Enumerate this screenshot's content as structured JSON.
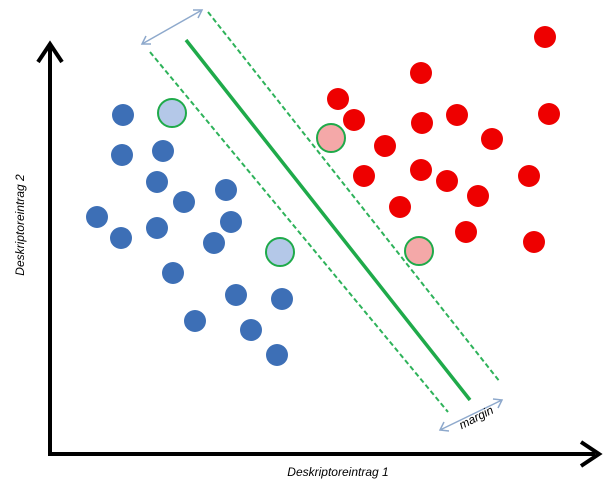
{
  "labels": {
    "x_axis": "Deskriptoreintrag 1",
    "y_axis": "Deskriptoreintrag 2",
    "margin": "margin"
  },
  "colors": {
    "class_a": "#3d6fb6",
    "class_a_support": "#b4c8e8",
    "class_b": "#ee0000",
    "class_b_support": "#f4a8a8",
    "hyperplane": "#1faa4a",
    "margin_lines": "#2eb25a",
    "margin_arrow": "#8ea9cc",
    "axes": "#000000"
  },
  "chart_data": {
    "type": "scatter",
    "series": [
      {
        "class": "a",
        "role": "points",
        "points": [
          [
            123,
            115
          ],
          [
            122,
            155
          ],
          [
            163,
            151
          ],
          [
            157,
            182
          ],
          [
            184,
            202
          ],
          [
            226,
            190
          ],
          [
            97,
            217
          ],
          [
            121,
            238
          ],
          [
            157,
            228
          ],
          [
            214,
            243
          ],
          [
            231,
            222
          ],
          [
            173,
            273
          ],
          [
            236,
            295
          ],
          [
            282,
            299
          ],
          [
            195,
            321
          ],
          [
            251,
            330
          ],
          [
            277,
            355
          ]
        ]
      },
      {
        "class": "a",
        "role": "support-vectors",
        "points": [
          [
            172,
            113
          ],
          [
            280,
            252
          ]
        ]
      },
      {
        "class": "b",
        "role": "points",
        "points": [
          [
            545,
            37
          ],
          [
            421,
            73
          ],
          [
            338,
            99
          ],
          [
            354,
            120
          ],
          [
            422,
            123
          ],
          [
            457,
            115
          ],
          [
            549,
            114
          ],
          [
            385,
            146
          ],
          [
            492,
            139
          ],
          [
            364,
            176
          ],
          [
            421,
            170
          ],
          [
            447,
            181
          ],
          [
            529,
            176
          ],
          [
            400,
            207
          ],
          [
            478,
            196
          ],
          [
            466,
            232
          ],
          [
            534,
            242
          ]
        ]
      },
      {
        "class": "b",
        "role": "support-vectors",
        "points": [
          [
            331,
            138
          ],
          [
            419,
            251
          ]
        ]
      }
    ]
  }
}
